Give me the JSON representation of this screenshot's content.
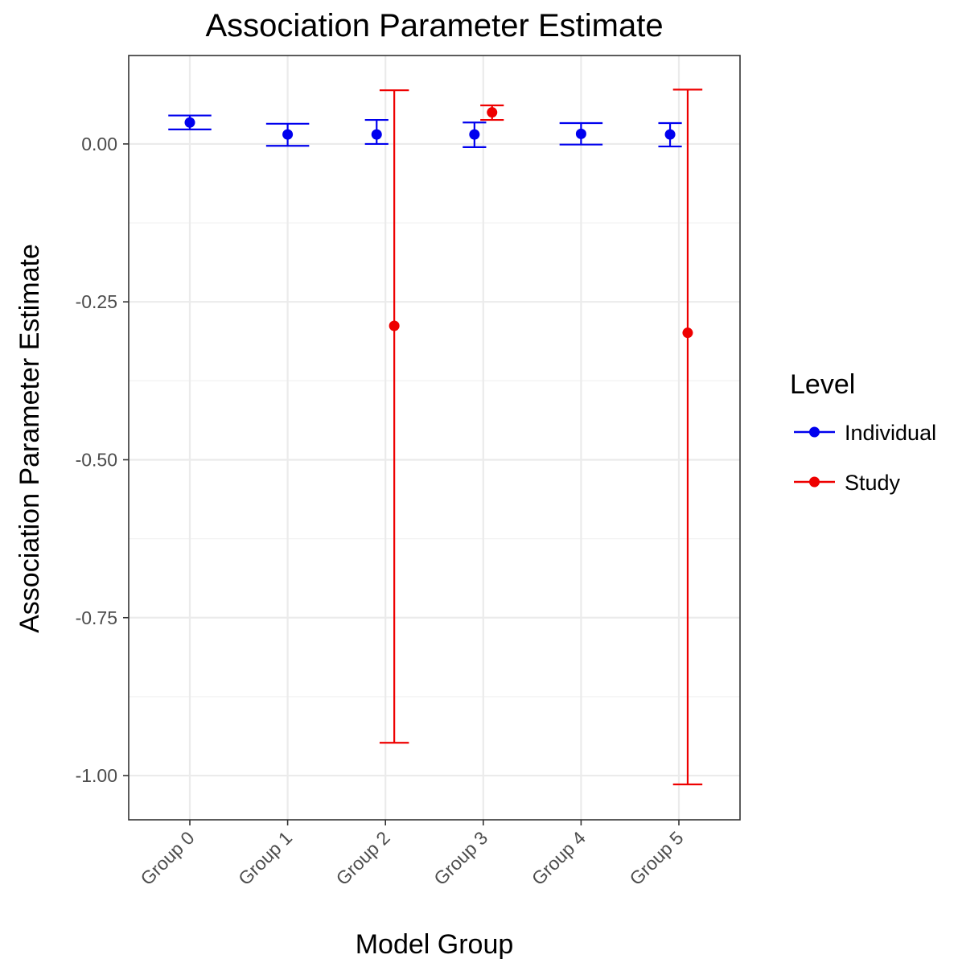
{
  "chart_data": {
    "type": "scatter",
    "title": "Association Parameter Estimate",
    "xlabel": "Model Group",
    "ylabel": "Association Parameter Estimate",
    "categories": [
      "Group 0",
      "Group 1",
      "Group 2",
      "Group 3",
      "Group 4",
      "Group 5"
    ],
    "ylim": [
      -1.07,
      0.14
    ],
    "yticks": [
      0.0,
      -0.25,
      -0.5,
      -0.75,
      -1.0
    ],
    "ytick_labels": [
      "0.00",
      "-0.25",
      "-0.50",
      "-0.75",
      "-1.00"
    ],
    "grid": true,
    "error_bars": true,
    "legend": {
      "title": "Level",
      "position": "right"
    },
    "series": [
      {
        "name": "Individual",
        "color": "#0000ee",
        "points": [
          {
            "category": "Group 0",
            "y": 0.034,
            "low": 0.023,
            "high": 0.045
          },
          {
            "category": "Group 1",
            "y": 0.015,
            "low": -0.003,
            "high": 0.032
          },
          {
            "category": "Group 2",
            "y": 0.015,
            "low": 0.0,
            "high": 0.038
          },
          {
            "category": "Group 3",
            "y": 0.015,
            "low": -0.005,
            "high": 0.034
          },
          {
            "category": "Group 4",
            "y": 0.016,
            "low": -0.001,
            "high": 0.033
          },
          {
            "category": "Group 5",
            "y": 0.015,
            "low": -0.004,
            "high": 0.033
          }
        ]
      },
      {
        "name": "Study",
        "color": "#ee0000",
        "points": [
          {
            "category": "Group 2",
            "y": -0.288,
            "low": -0.948,
            "high": 0.085
          },
          {
            "category": "Group 3",
            "y": 0.05,
            "low": 0.038,
            "high": 0.061
          },
          {
            "category": "Group 5",
            "y": -0.299,
            "low": -1.014,
            "high": 0.086
          }
        ]
      }
    ]
  }
}
